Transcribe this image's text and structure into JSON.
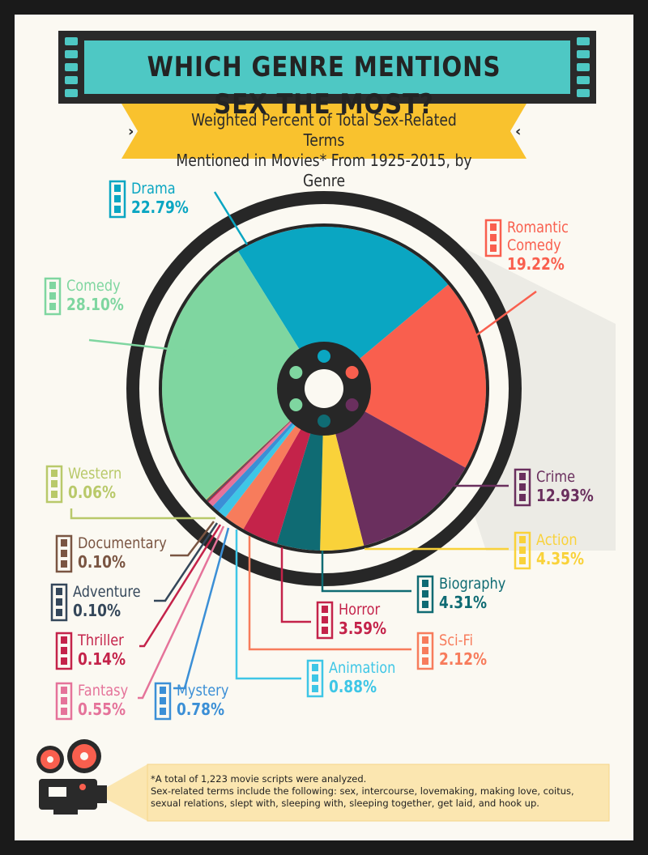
{
  "header": {
    "title": "WHICH GENRE MENTIONS SEX THE MOST?",
    "subtitle_line1": "Weighted Percent of Total Sex-Related Terms",
    "subtitle_line2": "Mentioned in Movies* From 1925-2015, by Genre"
  },
  "footnote": {
    "line1": "*A total of 1,223 movie scripts were analyzed.",
    "line2": "Sex-related terms include the following: sex, intercourse, lovemaking, making love, coitus,",
    "line3": "sexual relations, slept with, sleeping with, sleeping together, get laid, and hook up."
  },
  "colors": {
    "background": "#fbf9f2",
    "banner_teal": "#4ec8c4",
    "subtitle_yellow": "#f9c22e",
    "reel_dark": "#272727"
  },
  "chart_data": {
    "type": "pie",
    "title": "WHICH GENRE MENTIONS SEX THE MOST?",
    "subtitle": "Weighted Percent of Total Sex-Related Terms Mentioned in Movies* From 1925-2015, by Genre",
    "slices": [
      {
        "label": "Drama",
        "value": 22.79,
        "display": "22.79%",
        "color": "#0aa6c2"
      },
      {
        "label": "Romantic Comedy",
        "value": 19.22,
        "display": "19.22%",
        "color": "#f95f4e"
      },
      {
        "label": "Crime",
        "value": 12.93,
        "display": "12.93%",
        "color": "#6a2f5e"
      },
      {
        "label": "Action",
        "value": 4.35,
        "display": "4.35%",
        "color": "#f9d23a"
      },
      {
        "label": "Biography",
        "value": 4.31,
        "display": "4.31%",
        "color": "#0f6b73"
      },
      {
        "label": "Horror",
        "value": 3.59,
        "display": "3.59%",
        "color": "#c4234a"
      },
      {
        "label": "Sci-Fi",
        "value": 2.12,
        "display": "2.12%",
        "color": "#f77c5c"
      },
      {
        "label": "Animation",
        "value": 0.88,
        "display": "0.88%",
        "color": "#3ec6e6"
      },
      {
        "label": "Mystery",
        "value": 0.78,
        "display": "0.78%",
        "color": "#3b8fd6"
      },
      {
        "label": "Fantasy",
        "value": 0.55,
        "display": "0.55%",
        "color": "#e5739a"
      },
      {
        "label": "Thriller",
        "value": 0.14,
        "display": "0.14%",
        "color": "#c4234a"
      },
      {
        "label": "Adventure",
        "value": 0.1,
        "display": "0.10%",
        "color": "#34475a"
      },
      {
        "label": "Documentary",
        "value": 0.1,
        "display": "0.10%",
        "color": "#7a5542"
      },
      {
        "label": "Western",
        "value": 0.06,
        "display": "0.06%",
        "color": "#b9c96a"
      },
      {
        "label": "Comedy",
        "value": 28.1,
        "display": "28.10%",
        "color": "#7fd6a0"
      }
    ]
  }
}
